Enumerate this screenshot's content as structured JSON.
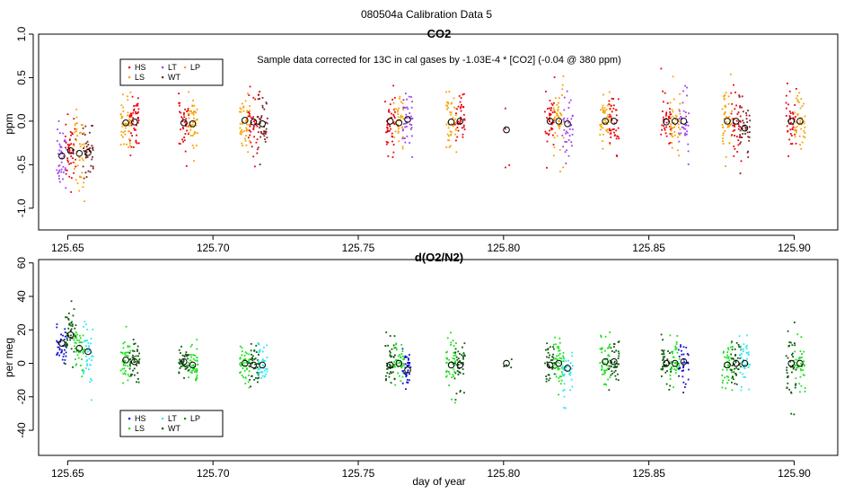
{
  "figure_title": "080504a   Calibration Data 5",
  "colors": {
    "HS": "#e8000b",
    "LS": "#f5a300",
    "LT": "#a040f0",
    "WT": "#7a2020",
    "LP": "#f5a300",
    "HS_o2": "#1010d0",
    "LS_o2": "#1ee01e",
    "LT_o2": "#30e8f0",
    "WT_o2": "#0a5a0a",
    "LP_o2": "#1a8a1a"
  },
  "chart_data": [
    {
      "type": "scatter",
      "title": "CO2",
      "subtitle": "Sample data corrected for 13C in cal gases by -1.03E-4 * [CO2] (-0.04 @ 380 ppm)",
      "xlabel": "",
      "ylabel": "ppm",
      "xlim": [
        125.64,
        125.915
      ],
      "ylim": [
        -1.25,
        1.0
      ],
      "xticks": [
        "125.65",
        "125.70",
        "125.75",
        "125.80",
        "125.85",
        "125.90"
      ],
      "xtick_values": [
        125.65,
        125.7,
        125.75,
        125.8,
        125.85,
        125.9
      ],
      "yticks": [
        "-1.0",
        "-0.5",
        "0.0",
        "0.5",
        "1.0"
      ],
      "ytick_values": [
        -1.0,
        -0.5,
        0.0,
        0.5,
        1.0
      ],
      "legend": {
        "placement": "top-left",
        "entries": [
          {
            "key": "HS",
            "label": "HS"
          },
          {
            "key": "LS",
            "label": "LS"
          },
          {
            "key": "LT",
            "label": "LT"
          },
          {
            "key": "WT",
            "label": "WT"
          },
          {
            "key": "LP",
            "label": "LP"
          }
        ]
      },
      "clusters": [
        {
          "x": 125.648,
          "gas": "LT",
          "mean": -0.4,
          "sd": 0.22,
          "n": 40
        },
        {
          "x": 125.651,
          "gas": "HS",
          "mean": -0.34,
          "sd": 0.25,
          "n": 45
        },
        {
          "x": 125.654,
          "gas": "LS",
          "mean": -0.37,
          "sd": 0.28,
          "n": 40
        },
        {
          "x": 125.657,
          "gas": "WT",
          "mean": -0.36,
          "sd": 0.22,
          "n": 40
        },
        {
          "x": 125.67,
          "gas": "LS",
          "mean": -0.02,
          "sd": 0.23,
          "n": 45
        },
        {
          "x": 125.673,
          "gas": "HS",
          "mean": -0.01,
          "sd": 0.22,
          "n": 45
        },
        {
          "x": 125.69,
          "gas": "HS",
          "mean": -0.02,
          "sd": 0.23,
          "n": 40
        },
        {
          "x": 125.693,
          "gas": "LS",
          "mean": -0.03,
          "sd": 0.23,
          "n": 45
        },
        {
          "x": 125.711,
          "gas": "LS",
          "mean": 0.01,
          "sd": 0.25,
          "n": 45
        },
        {
          "x": 125.714,
          "gas": "HS",
          "mean": -0.01,
          "sd": 0.22,
          "n": 40
        },
        {
          "x": 125.717,
          "gas": "WT",
          "mean": -0.03,
          "sd": 0.25,
          "n": 40
        },
        {
          "x": 125.761,
          "gas": "HS",
          "mean": 0.0,
          "sd": 0.23,
          "n": 45
        },
        {
          "x": 125.764,
          "gas": "LS",
          "mean": -0.02,
          "sd": 0.22,
          "n": 40
        },
        {
          "x": 125.767,
          "gas": "LT",
          "mean": 0.02,
          "sd": 0.25,
          "n": 40
        },
        {
          "x": 125.782,
          "gas": "LS",
          "mean": -0.01,
          "sd": 0.25,
          "n": 45
        },
        {
          "x": 125.785,
          "gas": "HS",
          "mean": 0.0,
          "sd": 0.22,
          "n": 40
        },
        {
          "x": 125.801,
          "gas": "HS",
          "mean": -0.1,
          "sd": 0.35,
          "n": 4
        },
        {
          "x": 125.816,
          "gas": "HS",
          "mean": 0.0,
          "sd": 0.22,
          "n": 45
        },
        {
          "x": 125.819,
          "gas": "LS",
          "mean": 0.0,
          "sd": 0.25,
          "n": 45
        },
        {
          "x": 125.822,
          "gas": "LT",
          "mean": -0.03,
          "sd": 0.22,
          "n": 35
        },
        {
          "x": 125.835,
          "gas": "LS",
          "mean": 0.0,
          "sd": 0.22,
          "n": 45
        },
        {
          "x": 125.838,
          "gas": "HS",
          "mean": 0.0,
          "sd": 0.22,
          "n": 40
        },
        {
          "x": 125.856,
          "gas": "HS",
          "mean": -0.01,
          "sd": 0.22,
          "n": 40
        },
        {
          "x": 125.859,
          "gas": "LS",
          "mean": 0.0,
          "sd": 0.23,
          "n": 40
        },
        {
          "x": 125.862,
          "gas": "LT",
          "mean": 0.0,
          "sd": 0.22,
          "n": 35
        },
        {
          "x": 125.877,
          "gas": "LS",
          "mean": 0.0,
          "sd": 0.25,
          "n": 45
        },
        {
          "x": 125.88,
          "gas": "HS",
          "mean": 0.0,
          "sd": 0.23,
          "n": 40
        },
        {
          "x": 125.883,
          "gas": "WT",
          "mean": -0.08,
          "sd": 0.25,
          "n": 40
        },
        {
          "x": 125.899,
          "gas": "HS",
          "mean": 0.0,
          "sd": 0.25,
          "n": 40
        },
        {
          "x": 125.902,
          "gas": "LS",
          "mean": 0.0,
          "sd": 0.23,
          "n": 40
        }
      ]
    },
    {
      "type": "scatter",
      "title": "d(O2/N2)",
      "xlabel": "day of year",
      "ylabel": "per meg",
      "xlim": [
        125.64,
        125.915
      ],
      "ylim": [
        -55,
        62
      ],
      "xticks": [
        "125.65",
        "125.70",
        "125.75",
        "125.80",
        "125.85",
        "125.90"
      ],
      "xtick_values": [
        125.65,
        125.7,
        125.75,
        125.8,
        125.85,
        125.9
      ],
      "yticks": [
        "-40",
        "-20",
        "0",
        "20",
        "40",
        "60"
      ],
      "ytick_values": [
        -40,
        -20,
        0,
        20,
        40,
        60
      ],
      "legend": {
        "placement": "bottom-left",
        "entries": [
          {
            "key": "HS_o2",
            "label": "HS"
          },
          {
            "key": "LS_o2",
            "label": "LS"
          },
          {
            "key": "LT_o2",
            "label": "LT"
          },
          {
            "key": "WT_o2",
            "label": "WT"
          },
          {
            "key": "LP_o2",
            "label": "LP"
          }
        ]
      },
      "clusters": [
        {
          "x": 125.648,
          "gas": "HS_o2",
          "mean": 12,
          "sd": 9,
          "n": 40
        },
        {
          "x": 125.651,
          "gas": "WT_o2",
          "mean": 17,
          "sd": 10,
          "n": 45
        },
        {
          "x": 125.654,
          "gas": "LS_o2",
          "mean": 9,
          "sd": 11,
          "n": 40
        },
        {
          "x": 125.657,
          "gas": "LT_o2",
          "mean": 7,
          "sd": 12,
          "n": 40
        },
        {
          "x": 125.67,
          "gas": "LS_o2",
          "mean": 2,
          "sd": 9,
          "n": 45
        },
        {
          "x": 125.673,
          "gas": "WT_o2",
          "mean": 1,
          "sd": 8,
          "n": 40
        },
        {
          "x": 125.69,
          "gas": "WT_o2",
          "mean": 1,
          "sd": 7,
          "n": 40
        },
        {
          "x": 125.693,
          "gas": "LS_o2",
          "mean": -1,
          "sd": 8,
          "n": 45
        },
        {
          "x": 125.711,
          "gas": "LS_o2",
          "mean": 0,
          "sd": 8,
          "n": 45
        },
        {
          "x": 125.714,
          "gas": "WT_o2",
          "mean": -1,
          "sd": 9,
          "n": 40
        },
        {
          "x": 125.717,
          "gas": "LT_o2",
          "mean": -1,
          "sd": 8,
          "n": 40
        },
        {
          "x": 125.761,
          "gas": "WT_o2",
          "mean": -1,
          "sd": 10,
          "n": 45
        },
        {
          "x": 125.764,
          "gas": "LS_o2",
          "mean": 0,
          "sd": 9,
          "n": 40
        },
        {
          "x": 125.767,
          "gas": "HS_o2",
          "mean": -4,
          "sd": 8,
          "n": 40
        },
        {
          "x": 125.782,
          "gas": "LS_o2",
          "mean": -1,
          "sd": 12,
          "n": 45
        },
        {
          "x": 125.785,
          "gas": "WT_o2",
          "mean": -1,
          "sd": 12,
          "n": 40
        },
        {
          "x": 125.801,
          "gas": "WT_o2",
          "mean": 0,
          "sd": 4,
          "n": 4
        },
        {
          "x": 125.816,
          "gas": "WT_o2",
          "mean": -1,
          "sd": 9,
          "n": 40
        },
        {
          "x": 125.819,
          "gas": "LS_o2",
          "mean": 0,
          "sd": 10,
          "n": 45
        },
        {
          "x": 125.822,
          "gas": "LT_o2",
          "mean": -3,
          "sd": 10,
          "n": 35
        },
        {
          "x": 125.835,
          "gas": "LS_o2",
          "mean": 1,
          "sd": 9,
          "n": 45
        },
        {
          "x": 125.838,
          "gas": "WT_o2",
          "mean": 1,
          "sd": 9,
          "n": 40
        },
        {
          "x": 125.856,
          "gas": "WT_o2",
          "mean": 0,
          "sd": 10,
          "n": 40
        },
        {
          "x": 125.859,
          "gas": "LS_o2",
          "mean": 0,
          "sd": 9,
          "n": 40
        },
        {
          "x": 125.862,
          "gas": "HS_o2",
          "mean": 1,
          "sd": 9,
          "n": 35
        },
        {
          "x": 125.877,
          "gas": "LS_o2",
          "mean": -1,
          "sd": 9,
          "n": 45
        },
        {
          "x": 125.88,
          "gas": "WT_o2",
          "mean": 0,
          "sd": 9,
          "n": 40
        },
        {
          "x": 125.883,
          "gas": "LT_o2",
          "mean": 0,
          "sd": 9,
          "n": 40
        },
        {
          "x": 125.899,
          "gas": "WT_o2",
          "mean": 0,
          "sd": 14,
          "n": 40
        },
        {
          "x": 125.902,
          "gas": "LS_o2",
          "mean": 0,
          "sd": 10,
          "n": 40
        }
      ]
    }
  ]
}
